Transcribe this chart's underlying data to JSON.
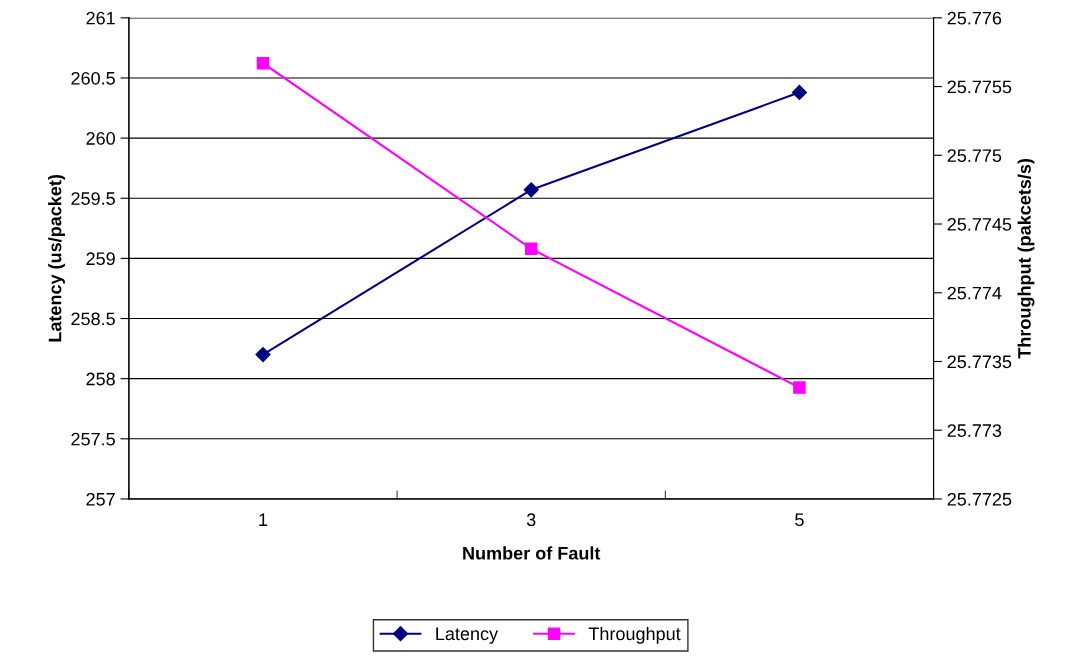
{
  "chart_data": {
    "type": "line",
    "xlabel": "Number of Fault",
    "ylabel": "Latency (us/packet)",
    "y2label": "Throughput (pakcets/s)",
    "categories": [
      "1",
      "3",
      "5"
    ],
    "series": [
      {
        "name": "Latency",
        "color": "#000080",
        "marker": "diamond",
        "values": [
          258.2,
          259.57,
          260.38
        ]
      },
      {
        "name": "Throughput",
        "color": "#ff00ff",
        "marker": "square",
        "axis": "y2",
        "values": [
          25.77567,
          25.77432,
          25.77331
        ]
      }
    ],
    "ylim": [
      257,
      261
    ],
    "yticks": [
      257,
      257.5,
      258,
      258.5,
      259,
      259.5,
      260,
      260.5,
      261
    ],
    "y2lim": [
      25.7725,
      25.776
    ],
    "y2ticks": [
      25.7725,
      25.773,
      25.7735,
      25.774,
      25.7745,
      25.775,
      25.7755,
      25.776
    ],
    "grid": "y",
    "legend": "bottom"
  }
}
